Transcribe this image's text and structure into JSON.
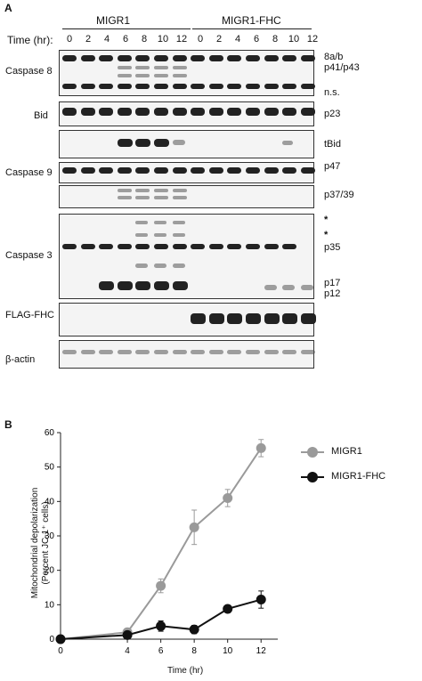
{
  "panel_a": {
    "letter": "A",
    "group_left": "MIGR1",
    "group_right": "MIGR1-FHC",
    "time_label": "Time (hr):",
    "times": [
      "0",
      "2",
      "4",
      "6",
      "8",
      "10",
      "12",
      "0",
      "2",
      "4",
      "6",
      "8",
      "10",
      "12"
    ],
    "rows": {
      "caspase8": "Caspase 8",
      "bid": "Bid",
      "caspase9": "Caspase 9",
      "caspase3": "Caspase 3",
      "flag": "FLAG-FHC",
      "actin": "β-actin"
    },
    "annotations": {
      "c8_1": "8a/b",
      "c8_2": "p41/p43",
      "c8_3": "n.s.",
      "bid_1": "p23",
      "bid_2": "tBid",
      "c9_1": "p47",
      "c9_2": "p37/39",
      "c3_star1": "*",
      "c3_star2": "*",
      "c3_1": "p35",
      "c3_2": "p17",
      "c3_3": "p12"
    }
  },
  "panel_b": {
    "letter": "B",
    "ylabel_line1": "Mitochondrial depolarization",
    "ylabel_line2": "(Percent JC-1⁺ cells)",
    "xlabel": "Time (hr)",
    "legend": [
      "MIGR1",
      "MIGR1-FHC"
    ],
    "x_ticks": [
      "0",
      "4",
      "6",
      "8",
      "10",
      "12"
    ],
    "y_ticks": [
      "0",
      "10",
      "20",
      "30",
      "40",
      "50",
      "60"
    ]
  },
  "chart_data": {
    "type": "line",
    "x": [
      0,
      4,
      6,
      8,
      10,
      12
    ],
    "xlabel": "Time (hr)",
    "ylabel": "Mitochondrial depolarization (Percent JC-1⁺ cells)",
    "ylim": [
      0,
      60
    ],
    "legend_position": "right",
    "series": [
      {
        "name": "MIGR1",
        "color": "#9a9a9a",
        "values": [
          0,
          2,
          15.5,
          32.5,
          41,
          55.5
        ],
        "errors": [
          0,
          0.5,
          2,
          5,
          2.5,
          2.5
        ]
      },
      {
        "name": "MIGR1-FHC",
        "color": "#111111",
        "values": [
          0,
          1.2,
          3.8,
          2.8,
          8.8,
          11.5
        ],
        "errors": [
          0,
          0.3,
          1.5,
          1.2,
          0.8,
          2.5
        ]
      }
    ]
  }
}
